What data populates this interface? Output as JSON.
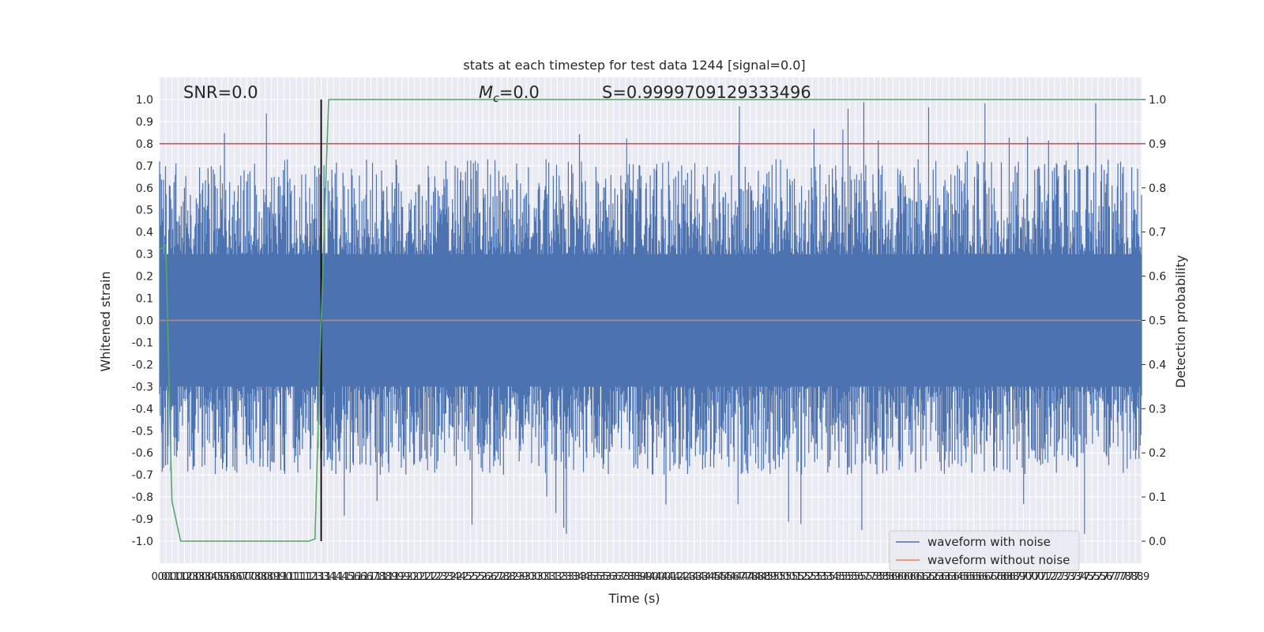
{
  "chart_data": {
    "type": "line",
    "title": "stats at each timestep for test data 1244 [signal=0.0]",
    "xlabel": "Time (s)",
    "ylabel": "Whitened strain",
    "y2label": "Detection probability",
    "xlim": [
      0.0,
      7.9
    ],
    "ylim": [
      -1.1,
      1.1
    ],
    "y2lim": [
      -0.05,
      1.05
    ],
    "xticks": [
      0.0,
      0.05,
      0.1,
      0.15,
      0.2,
      0.25,
      0.3,
      0.35,
      0.4,
      0.45,
      0.5,
      0.55,
      0.6,
      0.65,
      0.7,
      0.75,
      0.8,
      0.85,
      0.9,
      0.95,
      1.0,
      1.05,
      1.1,
      1.15,
      1.2,
      1.25,
      1.3,
      1.35,
      1.4,
      1.45,
      1.5,
      1.55,
      1.6,
      1.65,
      1.7,
      1.75,
      1.8,
      1.85,
      1.9,
      1.95,
      2.0,
      2.05,
      2.1,
      2.15,
      2.2,
      2.25,
      2.3,
      2.35,
      2.4,
      2.45,
      2.5,
      2.55,
      2.6,
      2.65,
      2.7,
      2.75,
      2.8,
      2.85,
      2.9,
      2.95,
      3.0,
      3.05,
      3.1,
      3.15,
      3.2,
      3.25,
      3.3,
      3.35,
      3.4,
      3.45,
      3.5,
      3.55,
      3.6,
      3.65,
      3.7,
      3.75,
      3.8,
      3.85,
      3.9,
      3.95,
      4.0,
      4.05,
      4.1,
      4.15,
      4.2,
      4.25,
      4.3,
      4.35,
      4.4,
      4.45,
      4.5,
      4.55,
      4.6,
      4.65,
      4.7,
      4.75,
      4.8,
      4.85,
      4.9,
      4.95,
      5.0,
      5.05,
      5.1,
      5.15,
      5.2,
      5.25,
      5.3,
      5.35,
      5.4,
      5.45,
      5.5,
      5.55,
      5.6,
      5.65,
      5.7,
      5.75,
      5.8,
      5.85,
      5.9,
      5.95,
      6.0,
      6.05,
      6.1,
      6.15,
      6.2,
      6.25,
      6.3,
      6.35,
      6.4,
      6.45,
      6.5,
      6.55,
      6.6,
      6.65,
      6.7,
      6.75,
      6.8,
      6.85,
      6.9,
      6.95,
      7.0,
      7.05,
      7.1,
      7.15,
      7.2,
      7.25,
      7.3,
      7.35,
      7.4,
      7.45,
      7.5,
      7.55,
      7.6,
      7.65,
      7.7,
      7.75,
      7.8,
      7.85,
      7.9
    ],
    "yticks": [
      -1.0,
      -0.9,
      -0.8,
      -0.7,
      -0.6,
      -0.5,
      -0.4,
      -0.3,
      -0.2,
      -0.1,
      0.0,
      0.1,
      0.2,
      0.3,
      0.4,
      0.5,
      0.6,
      0.7,
      0.8,
      0.9,
      1.0
    ],
    "y2ticks": [
      0.0,
      0.1,
      0.2,
      0.3,
      0.4,
      0.5,
      0.6,
      0.7,
      0.8,
      0.9,
      1.0
    ],
    "series": [
      {
        "name": "waveform with noise",
        "color": "#4c72b0",
        "axis": "left",
        "note_values": "dense noise; envelope approx ±0.45 with peaks to 1.0 and -0.99",
        "x_range": [
          0.0,
          7.9
        ],
        "y_range": [
          -0.99,
          1.0
        ]
      },
      {
        "name": "waveform without noise",
        "color": "#dd8452",
        "axis": "left",
        "x": [
          0.0,
          7.9
        ],
        "y": [
          0.0,
          0.0
        ]
      },
      {
        "name": "detection probability",
        "color": "#55a868",
        "axis": "right",
        "x": [
          0.0,
          0.05,
          0.1,
          0.17,
          1.0,
          1.2,
          1.25,
          1.3,
          1.36,
          7.9
        ],
        "y": [
          0.66,
          0.67,
          0.09,
          0.0,
          0.0,
          0.0,
          0.005,
          0.5,
          1.0,
          1.0
        ]
      }
    ],
    "hlines": [
      {
        "y": 0.8,
        "axis": "left",
        "color": "#c44e52"
      }
    ],
    "vlines": [
      {
        "x": 1.3,
        "color": "#000000",
        "y_from": -1.0,
        "y_to": 1.0
      }
    ],
    "annotations": {
      "snr": "SNR=0.0",
      "mc_symbol": "M",
      "mc_sub": "c",
      "mc_value": "=0.0",
      "s_label": "S=0.9999709129333496"
    },
    "legend": {
      "placement": "lower-right",
      "entries": [
        "waveform with noise",
        "waveform without noise"
      ]
    },
    "grid": true
  }
}
